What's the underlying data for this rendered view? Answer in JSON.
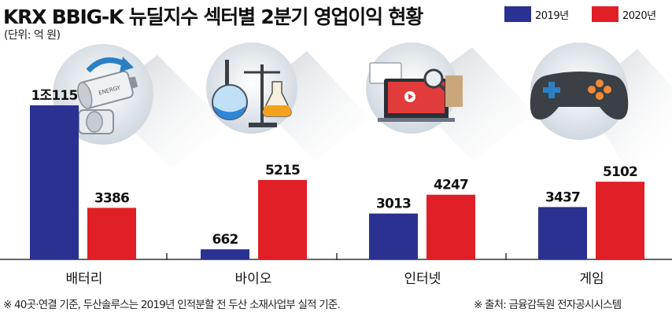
{
  "title": "KRX BBIG-K 뉴딜지수 섹터별 2분기 영업이익 현황",
  "unit_note": "(단위: 억 원)",
  "legend": [
    {
      "label": "2019년",
      "color": "#2b3190"
    },
    {
      "label": "2020년",
      "color": "#e11f26"
    }
  ],
  "icons": [
    "battery-icon",
    "lab-flask-icon",
    "computer-screen-icon",
    "gamepad-icon"
  ],
  "chart_data": {
    "type": "bar",
    "categories": [
      "배터리",
      "바이오",
      "인터넷",
      "게임"
    ],
    "series": [
      {
        "name": "2019년",
        "color": "#2b3190",
        "values": [
          10115,
          662,
          3013,
          3437
        ],
        "labels": [
          "1조115",
          "662",
          "3013",
          "3437"
        ]
      },
      {
        "name": "2020년",
        "color": "#e11f26",
        "values": [
          3386,
          5215,
          4247,
          5102
        ],
        "labels": [
          "3386",
          "5215",
          "4247",
          "5102"
        ]
      }
    ],
    "ylim": [
      0,
      10115
    ],
    "grid": false,
    "legend_position": "top-right"
  },
  "footnotes": {
    "left": "※ 40곳·연결 기준, 두산솔루스는 2019년 인적분할 전 두산 소재사업부 실적 기준.",
    "right": "※ 출처: 금융감독원 전자공시시스템"
  }
}
